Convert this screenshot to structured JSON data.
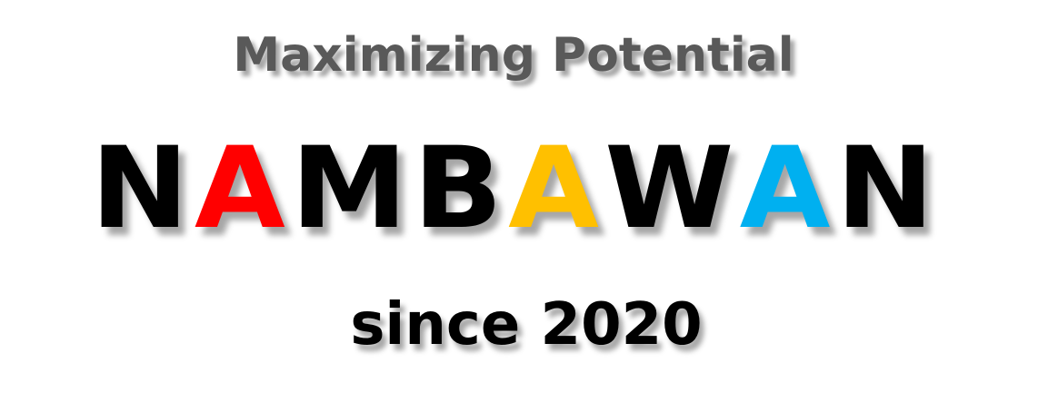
{
  "tagline": "Maximizing Potential",
  "brand": {
    "letters": [
      {
        "char": "N",
        "color": "#000000"
      },
      {
        "char": "A",
        "color": "#ff0000"
      },
      {
        "char": "M",
        "color": "#000000"
      },
      {
        "char": "B",
        "color": "#000000"
      },
      {
        "char": "A",
        "color": "#ffc000"
      },
      {
        "char": "W",
        "color": "#000000"
      },
      {
        "char": "A",
        "color": "#00b0f0"
      },
      {
        "char": "N",
        "color": "#000000"
      }
    ]
  },
  "since": "since 2020"
}
